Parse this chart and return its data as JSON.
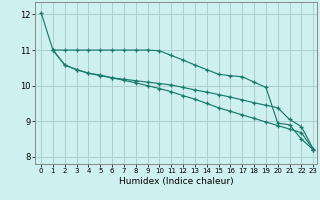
{
  "xlabel": "Humidex (Indice chaleur)",
  "background_color": "#cff0f0",
  "grid_color": "#aacfcf",
  "line_color": "#1a7a6e",
  "xlim": [
    -0.5,
    23.3
  ],
  "ylim": [
    7.8,
    12.35
  ],
  "x_ticks": [
    0,
    1,
    2,
    3,
    4,
    5,
    6,
    7,
    8,
    9,
    10,
    11,
    12,
    13,
    14,
    15,
    16,
    17,
    18,
    19,
    20,
    21,
    22,
    23
  ],
  "y_ticks": [
    8,
    9,
    10,
    11,
    12
  ],
  "line1_x": [
    0,
    1,
    2,
    3,
    4,
    5,
    6,
    7,
    8,
    9,
    10,
    11,
    12,
    13,
    14,
    15,
    16,
    17,
    18,
    19,
    20,
    21,
    22,
    23
  ],
  "line1_y": [
    12.05,
    11.0,
    11.0,
    11.0,
    11.0,
    11.0,
    11.0,
    11.0,
    11.0,
    11.0,
    10.98,
    10.85,
    10.72,
    10.58,
    10.45,
    10.32,
    10.28,
    10.25,
    10.1,
    9.95,
    8.95,
    8.9,
    8.5,
    8.2
  ],
  "line2_x": [
    1,
    2,
    3,
    4,
    5,
    6,
    7,
    8,
    9,
    10,
    11,
    12,
    13,
    14,
    15,
    16,
    17,
    18,
    19,
    20,
    21,
    22,
    23
  ],
  "line2_y": [
    11.0,
    10.58,
    10.45,
    10.35,
    10.28,
    10.22,
    10.18,
    10.14,
    10.1,
    10.06,
    10.02,
    9.95,
    9.88,
    9.82,
    9.75,
    9.68,
    9.6,
    9.52,
    9.45,
    9.38,
    9.05,
    8.85,
    8.22
  ],
  "line3_x": [
    1,
    2,
    3,
    4,
    5,
    6,
    7,
    8,
    9,
    10,
    11,
    12,
    13,
    14,
    15,
    16,
    17,
    18,
    19,
    20,
    21,
    22,
    23
  ],
  "line3_y": [
    11.0,
    10.58,
    10.45,
    10.35,
    10.3,
    10.22,
    10.15,
    10.08,
    10.0,
    9.92,
    9.83,
    9.72,
    9.62,
    9.5,
    9.38,
    9.28,
    9.18,
    9.08,
    8.98,
    8.88,
    8.78,
    8.68,
    8.2
  ]
}
